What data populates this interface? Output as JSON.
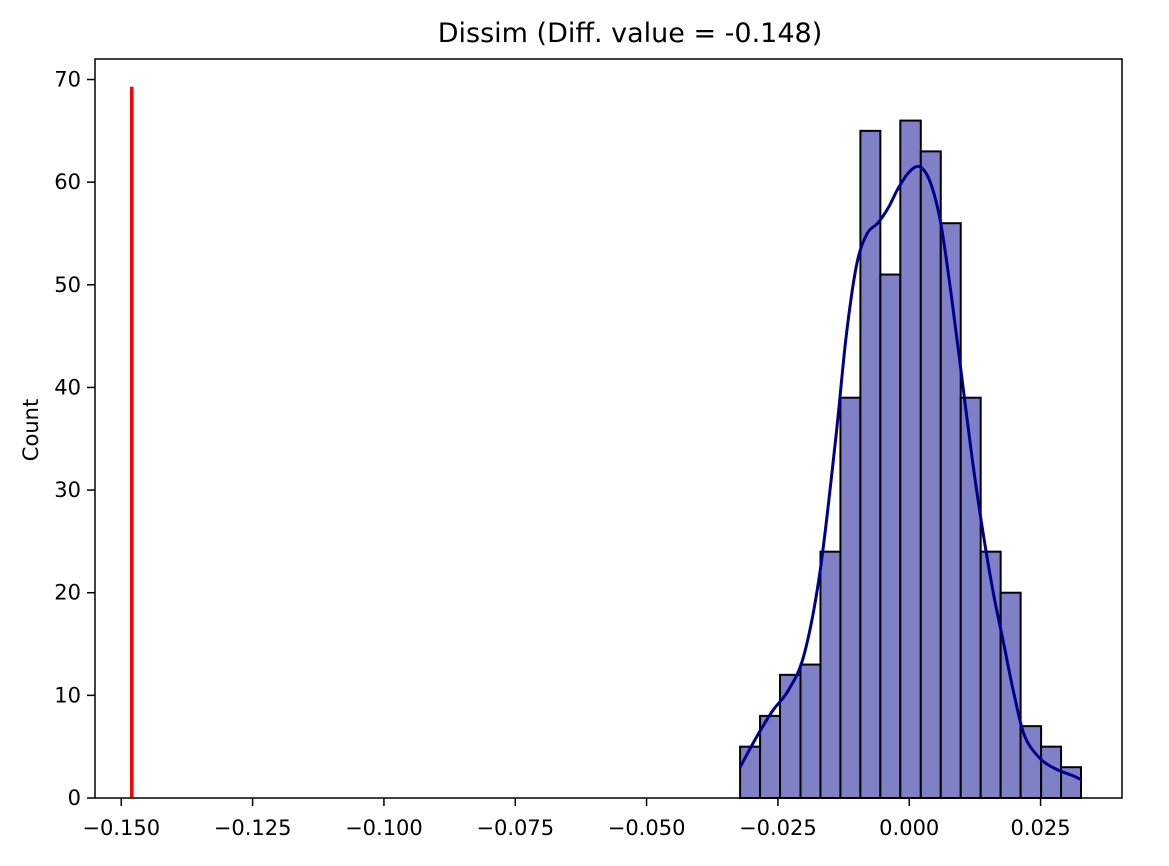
{
  "chart_data": {
    "type": "bar",
    "title": "Dissim (Diff. value = -0.148)",
    "xlabel": "",
    "ylabel": "Count",
    "xlim": [
      -0.155,
      0.0405
    ],
    "ylim": [
      0,
      72
    ],
    "xticks": [
      -0.15,
      -0.125,
      -0.1,
      -0.075,
      -0.05,
      -0.025,
      0.0,
      0.025
    ],
    "xtick_labels": [
      "−0.150",
      "−0.125",
      "−0.100",
      "−0.075",
      "−0.050",
      "−0.025",
      "0.000",
      "0.025"
    ],
    "yticks": [
      0,
      10,
      20,
      30,
      40,
      50,
      60,
      70
    ],
    "ytick_labels": [
      "0",
      "10",
      "20",
      "30",
      "40",
      "50",
      "60",
      "70"
    ],
    "grid": false,
    "bin_edges": [
      -0.0322,
      -0.0284,
      -0.0246,
      -0.0207,
      -0.0169,
      -0.0131,
      -0.0093,
      -0.0055,
      -0.0017,
      0.0022,
      0.006,
      0.0098,
      0.0136,
      0.0174,
      0.0212,
      0.0251,
      0.0289,
      0.0327
    ],
    "counts": [
      5,
      8,
      12,
      13,
      24,
      39,
      65,
      51,
      66,
      63,
      56,
      39,
      24,
      20,
      7,
      5,
      3
    ],
    "kde": {
      "x": [
        -0.0322,
        -0.029,
        -0.026,
        -0.023,
        -0.02,
        -0.017,
        -0.014,
        -0.012,
        -0.01,
        -0.008,
        -0.006,
        -0.004,
        -0.002,
        0.0,
        0.002,
        0.004,
        0.006,
        0.008,
        0.01,
        0.012,
        0.014,
        0.016,
        0.018,
        0.02,
        0.022,
        0.025,
        0.028,
        0.031,
        0.0327
      ],
      "y": [
        3,
        6,
        8.5,
        10.5,
        14,
        22,
        35,
        45,
        52,
        55,
        56,
        57.5,
        59.5,
        61,
        61.5,
        60,
        56,
        49,
        41,
        33,
        26,
        20,
        15,
        10,
        6,
        3.8,
        2.8,
        2.2,
        1.8
      ]
    },
    "reference_line": {
      "x": -0.148,
      "y_top": 69.3
    },
    "colors": {
      "bar_fill": "#7f80c6",
      "bar_edge": "#000000",
      "kde_line": "#00008b",
      "reference_line": "#ff0000"
    }
  }
}
